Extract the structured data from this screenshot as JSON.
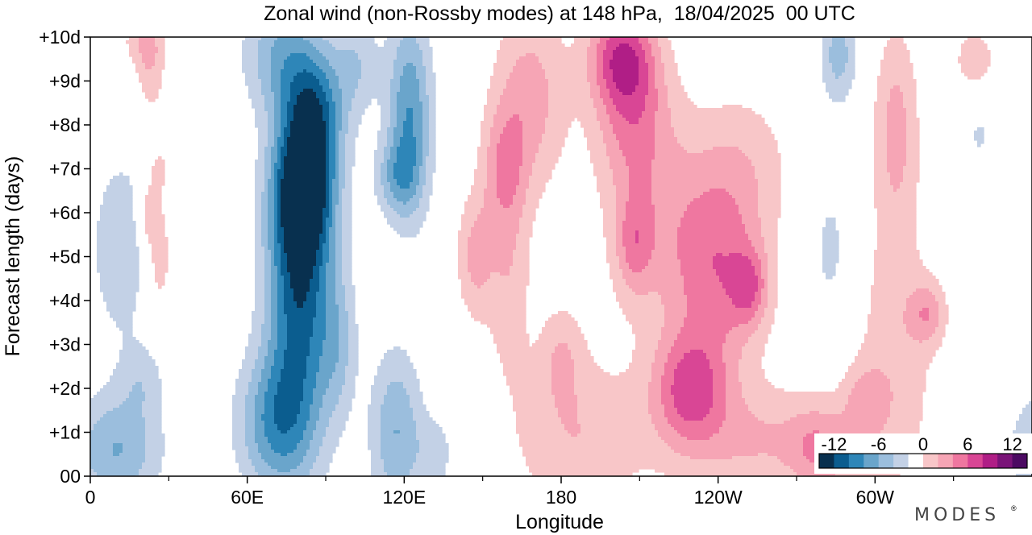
{
  "chart_data": {
    "type": "heatmap",
    "title": "Zonal wind (non-Rossby modes) at 148 hPa,  18/04/2025  00 UTC",
    "xlabel": "Longitude",
    "ylabel": "Forecast length (days)",
    "x_ticks": [
      "0",
      "60E",
      "120E",
      "180",
      "120W",
      "60W"
    ],
    "x_tick_values": [
      0,
      60,
      120,
      180,
      240,
      300
    ],
    "x_minor_ticks": [
      30,
      90,
      150,
      210,
      270,
      330
    ],
    "xlim": [
      0,
      360
    ],
    "y_ticks": [
      "00",
      "+1d",
      "+2d",
      "+3d",
      "+4d",
      "+5d",
      "+6d",
      "+7d",
      "+8d",
      "+9d",
      "+10d"
    ],
    "y_tick_values": [
      0,
      1,
      2,
      3,
      4,
      5,
      6,
      7,
      8,
      9,
      10
    ],
    "ylim": [
      0,
      10
    ],
    "colorbar": {
      "labels": [
        "-12",
        "-6",
        "0",
        "6",
        "12"
      ],
      "label_values": [
        -12,
        -6,
        0,
        6,
        12
      ],
      "levels": [
        -14,
        -12,
        -10,
        -8,
        -6,
        -4,
        -2,
        2,
        4,
        6,
        8,
        10,
        12,
        14
      ],
      "colors": [
        "#08304f",
        "#0b5d8f",
        "#2e86b8",
        "#6aa5cb",
        "#9bbedd",
        "#c3d1e6",
        "#ffffff",
        "#f8c6c8",
        "#f6a5b5",
        "#ef77a0",
        "#d94695",
        "#b01e86",
        "#7a1478",
        "#4c0a62"
      ]
    },
    "features": [
      {
        "lon": 80,
        "t": 4.6,
        "sx": 9,
        "st": 2.6,
        "value": -12
      },
      {
        "lon": 82,
        "t": 6.5,
        "sx": 8,
        "st": 1.0,
        "value": -9
      },
      {
        "lon": 70,
        "t": 1.2,
        "sx": 10,
        "st": 1.1,
        "value": -7
      },
      {
        "lon": 86,
        "t": 8.3,
        "sx": 8,
        "st": 1.0,
        "value": -8
      },
      {
        "lon": 72,
        "t": 9.6,
        "sx": 10,
        "st": 0.9,
        "value": -5
      },
      {
        "lon": 95,
        "t": 3.0,
        "sx": 5,
        "st": 1.2,
        "value": -3.5
      },
      {
        "lon": 102,
        "t": 9.4,
        "sx": 6,
        "st": 0.8,
        "value": -3.5
      },
      {
        "lon": 122,
        "t": 8.2,
        "sx": 6,
        "st": 1.6,
        "value": -8
      },
      {
        "lon": 117,
        "t": 6.8,
        "sx": 6,
        "st": 0.6,
        "value": -4.5
      },
      {
        "lon": 117,
        "t": 1.0,
        "sx": 7,
        "st": 1.3,
        "value": -6
      },
      {
        "lon": 132,
        "t": 0.5,
        "sx": 5,
        "st": 0.6,
        "value": -3
      },
      {
        "lon": 10,
        "t": 0.6,
        "sx": 12,
        "st": 0.9,
        "value": -6
      },
      {
        "lon": 12,
        "t": 5.2,
        "sx": 9,
        "st": 1.6,
        "value": -3.5
      },
      {
        "lon": 20,
        "t": 2.2,
        "sx": 6,
        "st": 0.6,
        "value": -2.6
      },
      {
        "lon": 160,
        "t": 4.5,
        "sx": 6,
        "st": 1.6,
        "value": 3.5
      },
      {
        "lon": 147,
        "t": 5.0,
        "sx": 5,
        "st": 1.0,
        "value": 4.5
      },
      {
        "lon": 168,
        "t": 8.6,
        "sx": 10,
        "st": 1.5,
        "value": 5
      },
      {
        "lon": 158,
        "t": 7.0,
        "sx": 6,
        "st": 1.0,
        "value": 4.5
      },
      {
        "lon": 203,
        "t": 9.6,
        "sx": 9,
        "st": 0.8,
        "value": 8
      },
      {
        "lon": 207,
        "t": 8.3,
        "sx": 10,
        "st": 1.2,
        "value": 5.5
      },
      {
        "lon": 186,
        "t": 0.9,
        "sx": 18,
        "st": 1.3,
        "value": 3.8
      },
      {
        "lon": 180,
        "t": 2.8,
        "sx": 6,
        "st": 0.8,
        "value": 3.2
      },
      {
        "lon": 215,
        "t": 6.0,
        "sx": 14,
        "st": 1.8,
        "value": 3.5
      },
      {
        "lon": 208,
        "t": 5.3,
        "sx": 5,
        "st": 0.8,
        "value": 4.5
      },
      {
        "lon": 240,
        "t": 4.7,
        "sx": 13,
        "st": 1.6,
        "value": 7
      },
      {
        "lon": 252,
        "t": 4.3,
        "sx": 5,
        "st": 0.6,
        "value": 5
      },
      {
        "lon": 229,
        "t": 2.0,
        "sx": 10,
        "st": 0.9,
        "value": 7.5
      },
      {
        "lon": 250,
        "t": 7.2,
        "sx": 14,
        "st": 1.2,
        "value": 2.6
      },
      {
        "lon": 255,
        "t": 0.8,
        "sx": 24,
        "st": 0.9,
        "value": 4
      },
      {
        "lon": 279,
        "t": 0.6,
        "sx": 8,
        "st": 0.7,
        "value": 4.2
      },
      {
        "lon": 308,
        "t": 8.0,
        "sx": 6,
        "st": 1.6,
        "value": 4.5
      },
      {
        "lon": 308,
        "t": 2.8,
        "sx": 11,
        "st": 2.5,
        "value": 3.3
      },
      {
        "lon": 320,
        "t": 3.7,
        "sx": 5,
        "st": 0.5,
        "value": 4.4
      },
      {
        "lon": 296,
        "t": 1.7,
        "sx": 6,
        "st": 0.6,
        "value": 3.5
      },
      {
        "lon": 338,
        "t": 9.5,
        "sx": 8,
        "st": 0.7,
        "value": 2.6
      },
      {
        "lon": 286,
        "t": 9.6,
        "sx": 5,
        "st": 0.8,
        "value": -5
      },
      {
        "lon": 283,
        "t": 5.2,
        "sx": 6,
        "st": 1.3,
        "value": -2.6
      },
      {
        "lon": 340,
        "t": 7.8,
        "sx": 4,
        "st": 0.5,
        "value": -2.4
      },
      {
        "lon": 23,
        "t": 9.2,
        "sx": 4,
        "st": 0.7,
        "value": 3.4
      },
      {
        "lon": 26,
        "t": 5.0,
        "sx": 4,
        "st": 1.0,
        "value": 3.6
      },
      {
        "lon": 22,
        "t": 6.0,
        "sx": 3,
        "st": 0.5,
        "value": 3.4
      },
      {
        "lon": 26,
        "t": 7.0,
        "sx": 3,
        "st": 0.4,
        "value": 2.6
      },
      {
        "lon": 20,
        "t": 9.9,
        "sx": 6,
        "st": 0.4,
        "value": 3
      }
    ]
  },
  "brand": {
    "logo_text": "MODES",
    "registered_mark": "®"
  }
}
